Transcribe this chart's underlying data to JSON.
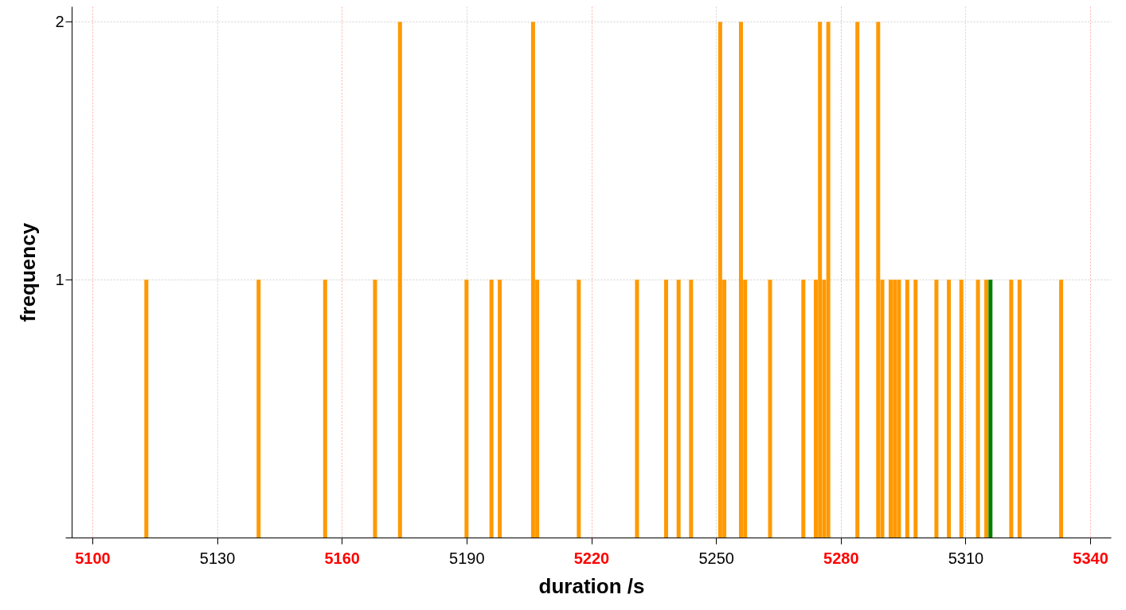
{
  "chart_data": {
    "type": "bar",
    "xlabel": "duration /s",
    "ylabel": "frequency",
    "x": [
      5113,
      5140,
      5156,
      5168,
      5174,
      5190,
      5196,
      5198,
      5206,
      5207,
      5217,
      5231,
      5238,
      5241,
      5244,
      5251,
      5252,
      5256,
      5257,
      5263,
      5271,
      5274,
      5275,
      5276,
      5277,
      5284,
      5289,
      5290,
      5292,
      5293,
      5294,
      5296,
      5298,
      5303,
      5306,
      5309,
      5313,
      5315,
      5316,
      5321,
      5323,
      5333
    ],
    "values": [
      1,
      1,
      1,
      1,
      2,
      1,
      1,
      1,
      2,
      1,
      1,
      1,
      1,
      1,
      1,
      2,
      1,
      2,
      1,
      1,
      1,
      1,
      2,
      1,
      2,
      2,
      2,
      1,
      1,
      1,
      1,
      1,
      1,
      1,
      1,
      1,
      1,
      1,
      1,
      1,
      1,
      1
    ],
    "colors": [
      "#ff9900",
      "#ff9900",
      "#ff9900",
      "#ff9900",
      "#ff9900",
      "#ff9900",
      "#ff9900",
      "#ff9900",
      "#ff9900",
      "#ff9900",
      "#ff9900",
      "#ff9900",
      "#ff9900",
      "#ff9900",
      "#ff9900",
      "#ff9900",
      "#ff9900",
      "#ff9900",
      "#ff9900",
      "#ff9900",
      "#ff9900",
      "#ff9900",
      "#ff9900",
      "#ff9900",
      "#ff9900",
      "#ff9900",
      "#ff9900",
      "#ff9900",
      "#ff9900",
      "#ff9900",
      "#ff9900",
      "#ff9900",
      "#ff9900",
      "#ff9900",
      "#ff9900",
      "#ff9900",
      "#ff9900",
      "#ff9900",
      "#008000",
      "#ff9900",
      "#ff9900",
      "#ff9900"
    ],
    "xlim": [
      5096,
      5344
    ],
    "xticks": [
      5100,
      5130,
      5160,
      5190,
      5220,
      5250,
      5280,
      5310,
      5340
    ],
    "ylim": [
      0,
      2.06
    ],
    "yticks": [
      {
        "value": 0,
        "label": null
      },
      1,
      2
    ],
    "grid": true
  }
}
